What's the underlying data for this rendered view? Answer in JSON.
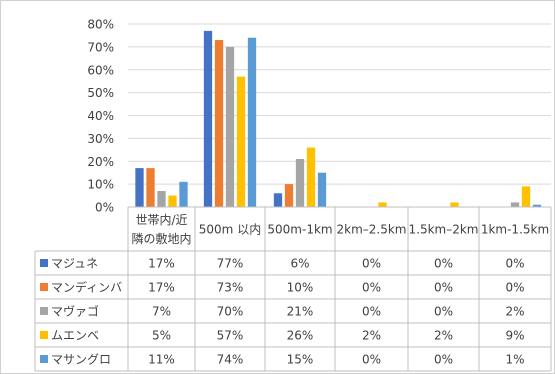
{
  "chart_data": {
    "type": "bar",
    "title": "",
    "xlabel": "",
    "ylabel": "",
    "ylim": [
      0,
      80
    ],
    "y_ticks": [
      "0%",
      "10%",
      "20%",
      "30%",
      "40%",
      "50%",
      "60%",
      "70%",
      "80%"
    ],
    "grid": true,
    "legend": "in-table",
    "categories": [
      [
        "世帯内/近",
        "隣の敷地内"
      ],
      [
        "500m 以内"
      ],
      [
        "500m-1km"
      ],
      [
        "2km–2.5km"
      ],
      [
        "1.5km–2km"
      ],
      [
        "1km-1.5km"
      ]
    ],
    "series": [
      {
        "name": "マジュネ",
        "color": "#4472c4",
        "values": [
          17,
          77,
          6,
          0,
          0,
          0
        ],
        "labels": [
          "17%",
          "77%",
          "6%",
          "0%",
          "0%",
          "0%"
        ]
      },
      {
        "name": "マンディンバ",
        "color": "#ed7d31",
        "values": [
          17,
          73,
          10,
          0,
          0,
          0
        ],
        "labels": [
          "17%",
          "73%",
          "10%",
          "0%",
          "0%",
          "0%"
        ]
      },
      {
        "name": "マヴァゴ",
        "color": "#a5a5a5",
        "values": [
          7,
          70,
          21,
          0,
          0,
          2
        ],
        "labels": [
          "7%",
          "70%",
          "21%",
          "0%",
          "0%",
          "2%"
        ]
      },
      {
        "name": "ムエンベ",
        "color": "#ffc000",
        "values": [
          5,
          57,
          26,
          2,
          2,
          9
        ],
        "labels": [
          "5%",
          "57%",
          "26%",
          "2%",
          "2%",
          "9%"
        ]
      },
      {
        "name": "マサングロ",
        "color": "#5b9bd5",
        "values": [
          11,
          74,
          15,
          0,
          0,
          1
        ],
        "labels": [
          "11%",
          "74%",
          "15%",
          "0%",
          "0%",
          "1%"
        ]
      }
    ]
  }
}
